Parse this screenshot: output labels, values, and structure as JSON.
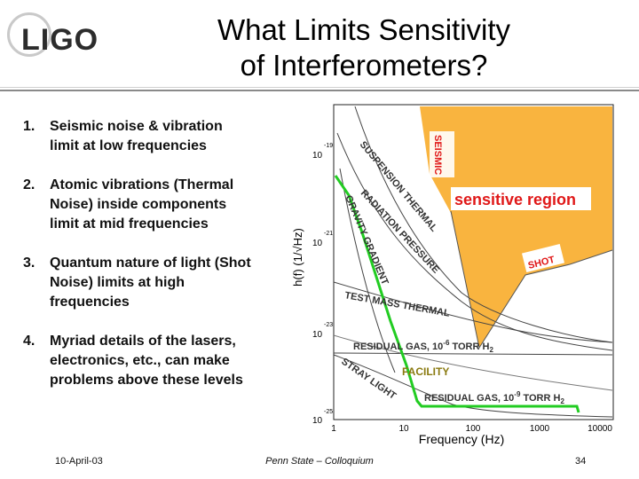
{
  "logo": {
    "text": "LIGO"
  },
  "title": {
    "line1": "What Limits Sensitivity",
    "line2": "of Interferometers?"
  },
  "list": [
    {
      "num": "1.",
      "lines": [
        "Seismic noise & vibration",
        "limit at low frequencies"
      ]
    },
    {
      "num": "2.",
      "lines": [
        "Atomic vibrations (Thermal",
        "Noise) inside components",
        "limit at mid frequencies"
      ]
    },
    {
      "num": "3.",
      "lines": [
        "Quantum nature of light (Shot",
        "Noise) limits at high",
        "frequencies"
      ]
    },
    {
      "num": "4.",
      "lines": [
        "Myriad details of the lasers,",
        "electronics, etc., can make",
        "problems above these levels"
      ]
    }
  ],
  "figure": {
    "ylabel": "h(f) (1/√Hz)",
    "xlabel": "Frequency (Hz)",
    "yticks": [
      {
        "base": "10",
        "exp": "-19"
      },
      {
        "base": "10",
        "exp": "-21"
      },
      {
        "base": "10",
        "exp": "-23"
      },
      {
        "base": "10",
        "exp": "-25"
      }
    ],
    "xticks": [
      "1",
      "10",
      "100",
      "1000",
      "10000"
    ],
    "labels": {
      "seismic": "SEISMIC",
      "suspension": "SUSPENSION THERMAL",
      "radiation": "RADIATION PRESSURE",
      "gravity": "GRAVITY GRADIENT",
      "testmass": "TEST MASS THERMAL",
      "shot": "SHOT",
      "sensitive": "sensitive region",
      "gas1": "RESIDUAL GAS, 10",
      "gas1_exp": "-6",
      "gas1_unit": " TORR H",
      "gas1_sub": "2",
      "stray": "STRAY LIGHT",
      "facility": "FACILITY",
      "gas2": "RESIDUAL GAS, 10",
      "gas2_exp": "-9",
      "gas2_unit": " TORR H",
      "gas2_sub": "2"
    },
    "colors": {
      "region": "#f9b43f",
      "limit": "#22cc22",
      "label_red": "#e01818"
    }
  },
  "footer": {
    "date": "10-April-03",
    "center": "Penn State – Colloquium",
    "page": "34"
  }
}
